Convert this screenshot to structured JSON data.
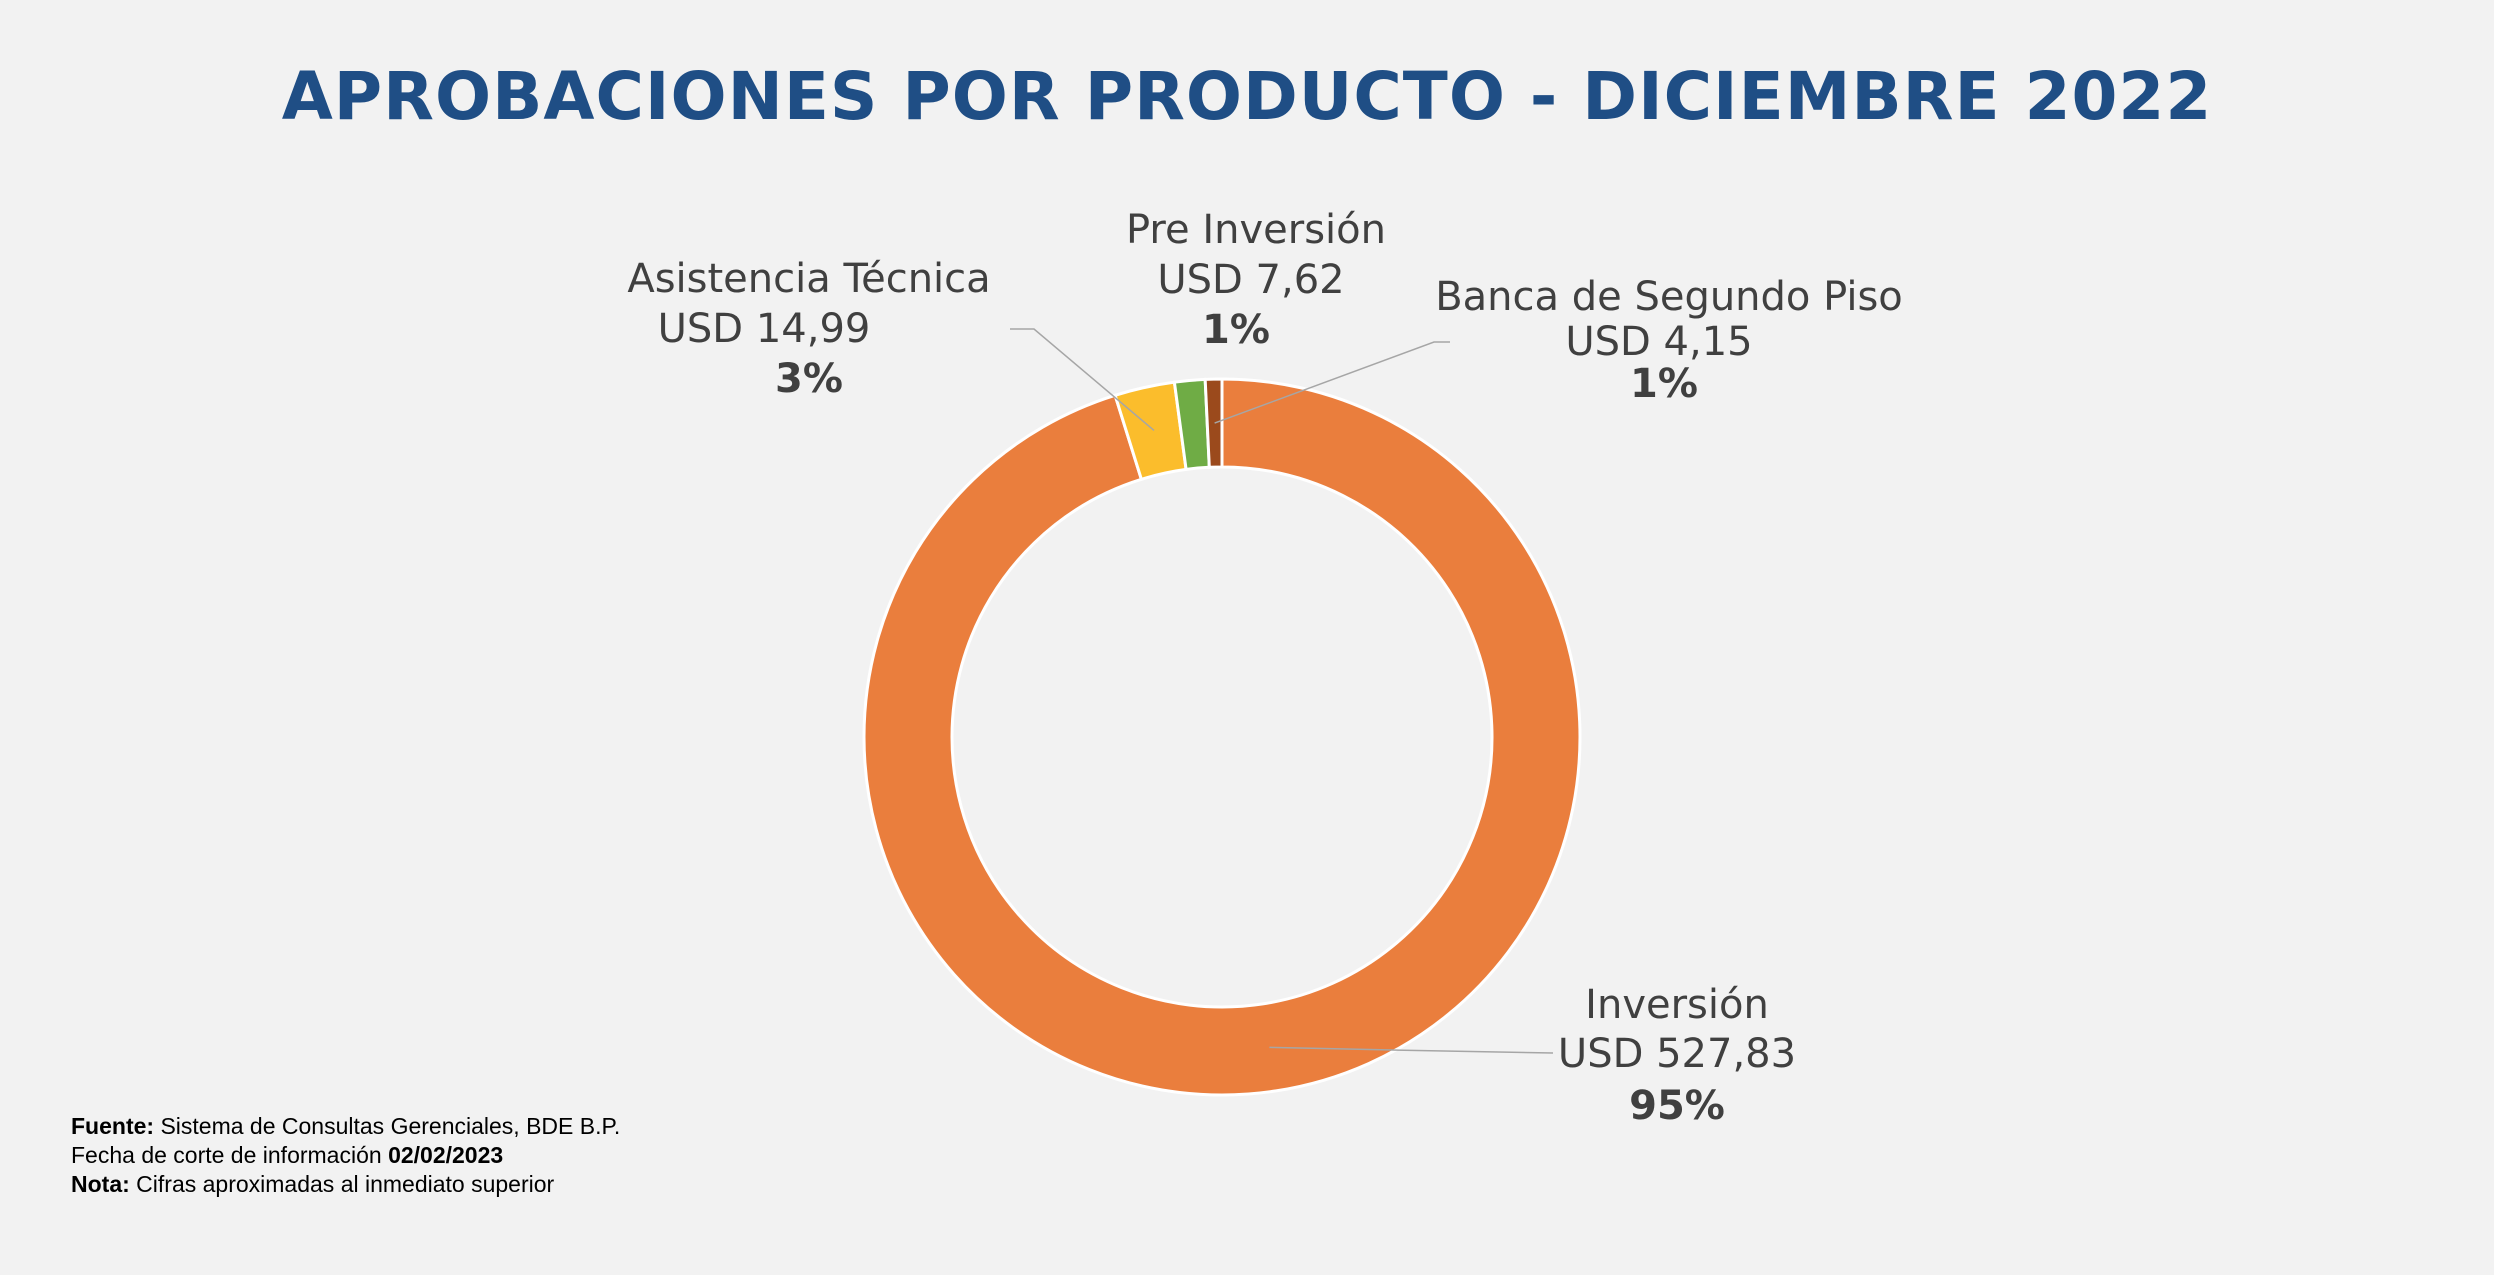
{
  "title": "APROBACIONES POR PRODUCTO - DICIEMBRE 2022",
  "chart_data": {
    "type": "pie",
    "style": "donut",
    "unit": "USD",
    "slices": [
      {
        "name": "Inversión",
        "value_label": "USD 527,83",
        "value": 527.83,
        "percent_label": "95%",
        "color": "#ea7e3d"
      },
      {
        "name": "Asistencia Técnica",
        "value_label": "USD 14,99",
        "value": 14.99,
        "percent_label": "3%",
        "color": "#fbbd2c"
      },
      {
        "name": "Pre Inversión",
        "value_label": "USD 7,62",
        "value": 7.62,
        "percent_label": "1%",
        "color": "#6fac45"
      },
      {
        "name": "Banca de Segundo Piso",
        "value_label": "USD 4,15",
        "value": 4.15,
        "percent_label": "1%",
        "color": "#9b4a1c"
      }
    ],
    "legend": "none",
    "data_labels": "outside with leader lines"
  },
  "notes": {
    "fuente_label": "Fuente:",
    "fuente_text": "Sistema de Consultas Gerenciales, BDE B.P.",
    "fecha_text": "Fecha de corte de información",
    "fecha_value": "02/02/2023",
    "nota_label": "Nota:",
    "nota_text": "Cifras aproximadas al inmediato superior"
  }
}
